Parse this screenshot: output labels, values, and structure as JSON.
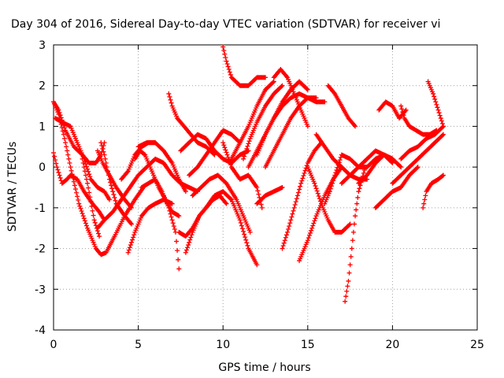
{
  "chart_data": {
    "type": "scatter",
    "title": "Day 304 of 2016, Sidereal Day-to-day VTEC variation (SDTVAR) for receiver vi",
    "xlabel": "GPS time / hours",
    "ylabel": "SDTVAR / TECUs",
    "xlim": [
      0,
      25
    ],
    "ylim": [
      -4,
      3
    ],
    "x_ticks": [
      "0",
      "5",
      "10",
      "15",
      "20",
      "25"
    ],
    "y_ticks": [
      "-4",
      "-3",
      "-2",
      "-1",
      "0",
      "1",
      "2",
      "3"
    ],
    "grid": true,
    "marker": "plus",
    "color": "#ff0000",
    "series": [
      {
        "x": [
          0.0,
          0.3,
          0.6,
          1.0,
          1.5,
          2.0,
          2.5,
          2.8,
          3.1,
          3.6,
          4.2,
          4.8,
          5.3
        ],
        "y": [
          1.6,
          1.3,
          0.8,
          0.0,
          -0.9,
          -1.5,
          -2.0,
          -2.15,
          -2.1,
          -1.7,
          -1.2,
          -0.8,
          -0.5
        ]
      },
      {
        "x": [
          0.0,
          0.2,
          0.5,
          0.8,
          1.0,
          1.4,
          1.8,
          2.3,
          2.7,
          3.0
        ],
        "y": [
          0.35,
          0.0,
          -0.4,
          -0.3,
          -0.2,
          -0.3,
          -0.6,
          -0.9,
          -1.1,
          -1.3
        ]
      },
      {
        "x": [
          0.1,
          0.5,
          1.0,
          1.4,
          1.8,
          2.2,
          2.6,
          3.0,
          3.3
        ],
        "y": [
          1.2,
          1.1,
          1.0,
          0.6,
          0.2,
          -0.3,
          -0.5,
          -0.6,
          -0.8
        ]
      },
      {
        "x": [
          0.0,
          0.3,
          0.7,
          1.2,
          1.7,
          2.1,
          2.5,
          2.8,
          3.0
        ],
        "y": [
          1.6,
          1.4,
          0.9,
          0.5,
          0.3,
          0.1,
          0.1,
          0.3,
          0.6
        ]
      },
      {
        "x": [
          1.7,
          2.0,
          2.4,
          2.7
        ],
        "y": [
          0.2,
          -0.4,
          -1.3,
          -1.7
        ]
      },
      {
        "x": [
          2.6,
          2.9,
          3.3,
          3.7,
          4.2,
          4.6
        ],
        "y": [
          0.4,
          0.1,
          -0.2,
          -0.5,
          -0.8,
          -1.0
        ]
      },
      {
        "x": [
          2.8,
          3.0,
          3.3,
          3.7,
          4.2,
          4.6
        ],
        "y": [
          0.6,
          0.3,
          -0.3,
          -0.9,
          -1.2,
          -1.4
        ]
      },
      {
        "x": [
          2.6,
          3.0,
          3.5,
          4.0,
          4.5,
          5.0,
          5.5
        ],
        "y": [
          -1.5,
          -1.3,
          -1.1,
          -0.8,
          -0.5,
          -0.2,
          0.0
        ]
      },
      {
        "x": [
          4.0,
          4.4,
          4.8,
          5.2,
          5.6,
          6.0
        ],
        "y": [
          -0.3,
          -0.1,
          0.3,
          0.5,
          0.6,
          0.6
        ]
      },
      {
        "x": [
          4.4,
          4.8,
          5.2,
          5.6,
          6.0,
          6.5,
          7.0
        ],
        "y": [
          -2.1,
          -1.6,
          -1.2,
          -1.0,
          -0.9,
          -0.8,
          -0.9
        ]
      },
      {
        "x": [
          4.8,
          5.1,
          5.4,
          5.8,
          6.2,
          6.6,
          7.0,
          7.4
        ],
        "y": [
          0.2,
          0.4,
          0.3,
          -0.1,
          -0.5,
          -0.8,
          -1.1,
          -1.2
        ]
      },
      {
        "x": [
          5.0,
          5.5,
          6.0,
          6.5,
          7.0,
          7.4,
          7.8
        ],
        "y": [
          0.5,
          0.6,
          0.6,
          0.4,
          0.1,
          -0.3,
          -0.6
        ]
      },
      {
        "x": [
          5.2,
          5.6,
          6.0,
          6.4,
          6.8,
          7.2,
          7.4
        ],
        "y": [
          -0.5,
          -0.4,
          -0.3,
          -0.6,
          -1.0,
          -1.6,
          -2.5
        ]
      },
      {
        "x": [
          6.8,
          7.0,
          7.3,
          7.7,
          8.1,
          8.5,
          9.0,
          9.5
        ],
        "y": [
          1.8,
          1.5,
          1.2,
          1.0,
          0.8,
          0.6,
          0.5,
          0.3
        ]
      },
      {
        "x": [
          5.5,
          6.0,
          6.5,
          7.0,
          7.5,
          8.0,
          8.5
        ],
        "y": [
          0.0,
          0.2,
          0.1,
          -0.2,
          -0.4,
          -0.5,
          -0.6
        ]
      },
      {
        "x": [
          7.4,
          7.8,
          8.2,
          8.6,
          9.0,
          9.4,
          9.8
        ],
        "y": [
          -1.6,
          -1.7,
          -1.5,
          -1.2,
          -1.0,
          -0.8,
          -0.7
        ]
      },
      {
        "x": [
          7.8,
          8.2,
          8.6,
          9.0,
          9.4,
          9.8,
          10.2
        ],
        "y": [
          -2.1,
          -1.6,
          -1.2,
          -1.0,
          -0.8,
          -0.7,
          -0.9
        ]
      },
      {
        "x": [
          7.5,
          8.0,
          8.5,
          9.0,
          9.5,
          10.0,
          10.5,
          11.0,
          11.5
        ],
        "y": [
          0.4,
          0.6,
          0.8,
          0.7,
          0.4,
          0.2,
          0.1,
          0.3,
          0.4
        ]
      },
      {
        "x": [
          8.0,
          8.5,
          9.0,
          9.5,
          10.0,
          10.5,
          11.0
        ],
        "y": [
          -0.2,
          0.0,
          0.3,
          0.6,
          0.9,
          0.8,
          0.6
        ]
      },
      {
        "x": [
          8.2,
          8.7,
          9.2,
          9.7,
          10.2,
          10.8,
          11.3,
          11.6
        ],
        "y": [
          -0.7,
          -0.5,
          -0.3,
          -0.2,
          -0.4,
          -0.8,
          -1.3,
          -1.6
        ]
      },
      {
        "x": [
          9.0,
          9.5,
          10.0,
          10.5,
          11.0,
          11.5,
          12.0
        ],
        "y": [
          -1.0,
          -0.7,
          -0.6,
          -0.8,
          -1.3,
          -2.0,
          -2.4
        ]
      },
      {
        "x": [
          10.0,
          10.2,
          10.5,
          11.0,
          11.5,
          12.0,
          12.5
        ],
        "y": [
          2.95,
          2.6,
          2.2,
          2.0,
          2.0,
          2.2,
          2.2
        ]
      },
      {
        "x": [
          10.0,
          10.5,
          11.0,
          11.5,
          12.0,
          12.3
        ],
        "y": [
          0.6,
          0.0,
          -0.3,
          -0.2,
          -0.5,
          -1.0
        ]
      },
      {
        "x": [
          10.5,
          11.0,
          11.5,
          12.0,
          12.5,
          13.0
        ],
        "y": [
          0.2,
          0.6,
          1.0,
          1.5,
          1.9,
          2.1
        ]
      },
      {
        "x": [
          11.2,
          11.6,
          12.0,
          12.5,
          13.0,
          13.5
        ],
        "y": [
          0.2,
          0.7,
          1.1,
          1.5,
          1.8,
          2.0
        ]
      },
      {
        "x": [
          11.5,
          12.0,
          12.5,
          13.0,
          13.5,
          14.0,
          14.5,
          15.0
        ],
        "y": [
          0.0,
          0.4,
          0.8,
          1.2,
          1.6,
          1.9,
          2.1,
          1.9
        ]
      },
      {
        "x": [
          12.0,
          12.5,
          13.0,
          13.5,
          14.0,
          14.5,
          15.0,
          15.5
        ],
        "y": [
          0.3,
          0.8,
          1.2,
          1.5,
          1.7,
          1.8,
          1.7,
          1.7
        ]
      },
      {
        "x": [
          12.5,
          13.0,
          13.5,
          14.0,
          14.5,
          15.0,
          15.5,
          16.0
        ],
        "y": [
          0.0,
          0.4,
          0.8,
          1.2,
          1.5,
          1.7,
          1.6,
          1.6
        ]
      },
      {
        "x": [
          13.0,
          13.4,
          13.8,
          14.2,
          14.6,
          15.0
        ],
        "y": [
          2.2,
          2.4,
          2.2,
          1.8,
          1.4,
          1.0
        ]
      },
      {
        "x": [
          12.0,
          12.5,
          13.0,
          13.5
        ],
        "y": [
          -0.9,
          -0.7,
          -0.6,
          -0.5
        ]
      },
      {
        "x": [
          13.5,
          13.8,
          14.2,
          14.6,
          15.0,
          15.4,
          15.8
        ],
        "y": [
          -2.0,
          -1.6,
          -1.0,
          -0.4,
          0.1,
          0.4,
          0.6
        ]
      },
      {
        "x": [
          14.5,
          15.0,
          15.5,
          16.0,
          16.5,
          17.0
        ],
        "y": [
          -2.3,
          -1.8,
          -1.2,
          -0.7,
          -0.3,
          0.0
        ]
      },
      {
        "x": [
          15.0,
          15.4,
          15.8,
          16.2,
          16.6,
          17.0,
          17.5
        ],
        "y": [
          0.0,
          -0.4,
          -0.9,
          -1.3,
          -1.6,
          -1.6,
          -1.4
        ]
      },
      {
        "x": [
          15.5,
          16.0,
          16.5,
          17.0,
          17.5,
          18.0,
          18.5
        ],
        "y": [
          0.8,
          0.5,
          0.2,
          0.0,
          -0.2,
          -0.3,
          -0.3
        ]
      },
      {
        "x": [
          16.0,
          16.3,
          16.6,
          17.0,
          17.5,
          18.0,
          18.5,
          19.0,
          19.5,
          20.0
        ],
        "y": [
          -0.9,
          -0.6,
          -0.2,
          0.3,
          0.2,
          0.0,
          0.0,
          0.2,
          0.3,
          0.2
        ]
      },
      {
        "x": [
          16.2,
          16.6,
          17.0,
          17.4,
          17.8
        ],
        "y": [
          2.0,
          1.8,
          1.5,
          1.2,
          1.0
        ]
      },
      {
        "x": [
          17.2,
          17.4,
          17.6,
          17.8,
          18.0,
          18.4
        ],
        "y": [
          -3.3,
          -2.8,
          -2.0,
          -1.2,
          -0.6,
          0.0
        ]
      },
      {
        "x": [
          17.0,
          17.5,
          18.0,
          18.5,
          19.0,
          19.5,
          20.0
        ],
        "y": [
          -0.4,
          -0.2,
          0.0,
          0.2,
          0.4,
          0.3,
          0.1
        ]
      },
      {
        "x": [
          18.0,
          18.5,
          19.0,
          19.5,
          20.0,
          20.5
        ],
        "y": [
          -0.4,
          -0.2,
          0.1,
          0.3,
          0.2,
          0.0
        ]
      },
      {
        "x": [
          19.0,
          19.5,
          20.0,
          20.5,
          21.0,
          21.5
        ],
        "y": [
          -1.0,
          -0.8,
          -0.6,
          -0.5,
          -0.2,
          0.0
        ]
      },
      {
        "x": [
          19.2,
          19.6,
          20.0,
          20.4,
          20.8
        ],
        "y": [
          1.4,
          1.6,
          1.5,
          1.2,
          1.4
        ]
      },
      {
        "x": [
          20.5,
          20.7,
          21.0,
          21.4,
          21.8,
          22.2,
          22.6
        ],
        "y": [
          1.5,
          1.2,
          1.0,
          0.9,
          0.8,
          0.8,
          0.9
        ]
      },
      {
        "x": [
          20.0,
          20.5,
          21.0,
          21.5,
          22.0,
          22.5,
          23.0
        ],
        "y": [
          -0.4,
          -0.2,
          0.0,
          0.2,
          0.4,
          0.6,
          0.8
        ]
      },
      {
        "x": [
          20.5,
          21.0,
          21.5,
          22.0,
          22.5,
          23.0
        ],
        "y": [
          0.2,
          0.4,
          0.5,
          0.7,
          0.8,
          1.0
        ]
      },
      {
        "x": [
          21.8,
          22.0,
          22.3,
          22.7,
          23.0
        ],
        "y": [
          -1.0,
          -0.6,
          -0.4,
          -0.3,
          -0.2
        ]
      },
      {
        "x": [
          22.1,
          22.4,
          22.7,
          23.0
        ],
        "y": [
          2.1,
          1.8,
          1.4,
          1.0
        ]
      }
    ]
  }
}
